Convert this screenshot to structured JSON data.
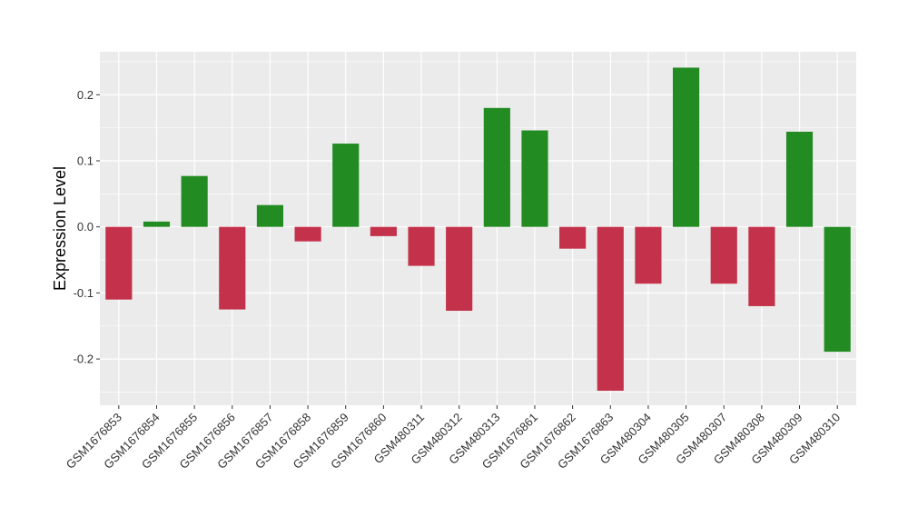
{
  "chart_data": {
    "type": "bar",
    "title": "",
    "xlabel": "",
    "ylabel": "Expression Level",
    "categories": [
      "GSM1676853",
      "GSM1676854",
      "GSM1676855",
      "GSM1676856",
      "GSM1676857",
      "GSM1676858",
      "GSM1676859",
      "GSM1676860",
      "GSM480311",
      "GSM480312",
      "GSM480313",
      "GSM1676861",
      "GSM1676862",
      "GSM1676863",
      "GSM480304",
      "GSM480305",
      "GSM480307",
      "GSM480308",
      "GSM480309",
      "GSM480310"
    ],
    "values": [
      -0.11,
      0.008,
      0.077,
      -0.125,
      0.033,
      -0.022,
      0.126,
      -0.014,
      -0.059,
      -0.127,
      0.18,
      0.146,
      -0.033,
      -0.248,
      -0.086,
      0.241,
      -0.086,
      -0.12,
      0.144,
      -0.189
    ],
    "bar_colors": [
      "#C3314A",
      "#228B22",
      "#228B22",
      "#C3314A",
      "#228B22",
      "#C3314A",
      "#228B22",
      "#C3314A",
      "#C3314A",
      "#C3314A",
      "#228B22",
      "#228B22",
      "#C3314A",
      "#C3314A",
      "#C3314A",
      "#228B22",
      "#C3314A",
      "#C3314A",
      "#228B22",
      "#228B22"
    ],
    "ylim": [
      -0.27,
      0.265
    ],
    "yticks": [
      -0.2,
      -0.1,
      0.0,
      0.1,
      0.2
    ],
    "ytick_labels": [
      "-0.2",
      "-0.1",
      "0.0",
      "0.1",
      "0.2"
    ],
    "grid": true,
    "legend": false,
    "panel_background": "#EBEBEB",
    "grid_color": "#FFFFFF"
  }
}
